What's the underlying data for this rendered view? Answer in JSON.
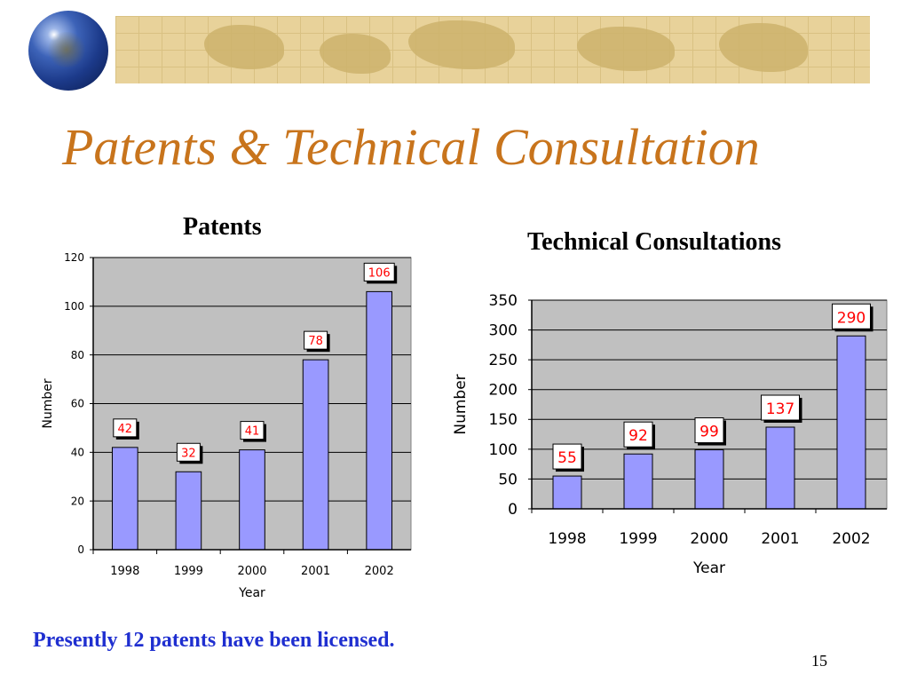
{
  "slide": {
    "title": "Patents & Technical Consultation",
    "footnote": "Presently 12 patents have been licensed.",
    "page_number": "15"
  },
  "colors": {
    "title": "#c8741c",
    "footnote": "#1f2fd0",
    "bar": "#9999ff",
    "plot_bg": "#c0c0c0",
    "label_text": "#ff0000"
  },
  "chart_data": [
    {
      "type": "bar",
      "title": "Patents",
      "xlabel": "Year",
      "ylabel": "Number",
      "categories": [
        "1998",
        "1999",
        "2000",
        "2001",
        "2002"
      ],
      "values": [
        42,
        32,
        41,
        78,
        106
      ],
      "ylim": [
        0,
        120
      ],
      "yticks": [
        0,
        20,
        40,
        60,
        80,
        100,
        120
      ],
      "grid": true
    },
    {
      "type": "bar",
      "title": "Technical Consultations",
      "xlabel": "Year",
      "ylabel": "Number",
      "categories": [
        "1998",
        "1999",
        "2000",
        "2001",
        "2002"
      ],
      "values": [
        55,
        92,
        99,
        137,
        290
      ],
      "ylim": [
        0,
        350
      ],
      "yticks": [
        0,
        50,
        100,
        150,
        200,
        250,
        300,
        350
      ],
      "grid": true
    }
  ]
}
